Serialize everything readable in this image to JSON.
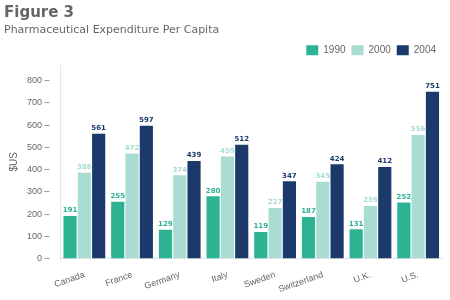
{
  "chart_data": {
    "type": "bar",
    "title": "Figure 3",
    "subtitle": "Pharmaceutical Expenditure Per Capita",
    "ylabel": "$US",
    "categories": [
      "Canada",
      "France",
      "Germany",
      "Italy",
      "Sweden",
      "Switzerland",
      "U.K.",
      "U.S."
    ],
    "series": [
      {
        "name": "1990",
        "color": "#2db394",
        "values": [
          191,
          255,
          129,
          280,
          119,
          187,
          131,
          252
        ]
      },
      {
        "name": "2000",
        "color": "#a8ddd3",
        "values": [
          386,
          472,
          374,
          459,
          227,
          345,
          236,
          556
        ]
      },
      {
        "name": "2004",
        "color": "#1b3a6b",
        "values": [
          561,
          597,
          439,
          512,
          347,
          424,
          412,
          751
        ]
      }
    ],
    "ylim": [
      0,
      870
    ],
    "yticks": [
      {
        "value": 0,
        "label": "0 –"
      },
      {
        "value": 100,
        "label": "100 –"
      },
      {
        "value": 200,
        "label": "200 –"
      },
      {
        "value": 300,
        "label": "300 –"
      },
      {
        "value": 400,
        "label": "400 –"
      },
      {
        "value": 500,
        "label": "500 –"
      },
      {
        "value": 600,
        "label": "600 –"
      },
      {
        "value": 700,
        "label": "700 –"
      },
      {
        "value": 800,
        "label": "800 –"
      }
    ],
    "grid": false,
    "legend": "upper right",
    "data_labels": true
  }
}
